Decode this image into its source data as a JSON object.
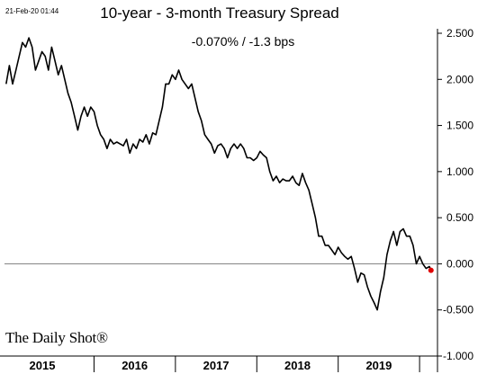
{
  "timestamp": "21-Feb-20 01:44",
  "brand": "The Daily Shot®",
  "chart_data": {
    "type": "line",
    "title": "10-year - 3-month Treasury Spread",
    "subtitle": "-0.070%  /  -1.3 bps",
    "xlabel": "",
    "ylabel": "",
    "ylim": [
      -1.0,
      2.5
    ],
    "yticks": [
      "2.500",
      "2.000",
      "1.500",
      "1.000",
      "0.500",
      "0.000",
      "-0.500",
      "-1.000"
    ],
    "ytick_values": [
      2.5,
      2.0,
      1.5,
      1.0,
      0.5,
      0.0,
      -0.5,
      -1.0
    ],
    "xlim": [
      2014.9,
      2020.22
    ],
    "year_labels": [
      "2015",
      "2016",
      "2017",
      "2018",
      "2019"
    ],
    "zero_line": true,
    "last_point_color": "#e00000",
    "line_color": "#000000",
    "series": [
      {
        "values": [
          [
            2014.92,
            1.95
          ],
          [
            2014.96,
            2.15
          ],
          [
            2015.0,
            1.95
          ],
          [
            2015.04,
            2.1
          ],
          [
            2015.08,
            2.25
          ],
          [
            2015.12,
            2.4
          ],
          [
            2015.16,
            2.35
          ],
          [
            2015.2,
            2.45
          ],
          [
            2015.24,
            2.35
          ],
          [
            2015.28,
            2.1
          ],
          [
            2015.32,
            2.2
          ],
          [
            2015.36,
            2.3
          ],
          [
            2015.4,
            2.25
          ],
          [
            2015.44,
            2.1
          ],
          [
            2015.48,
            2.35
          ],
          [
            2015.52,
            2.2
          ],
          [
            2015.56,
            2.05
          ],
          [
            2015.6,
            2.15
          ],
          [
            2015.64,
            2.0
          ],
          [
            2015.68,
            1.85
          ],
          [
            2015.72,
            1.75
          ],
          [
            2015.76,
            1.6
          ],
          [
            2015.8,
            1.45
          ],
          [
            2015.84,
            1.6
          ],
          [
            2015.88,
            1.7
          ],
          [
            2015.92,
            1.6
          ],
          [
            2015.96,
            1.7
          ],
          [
            2016.0,
            1.65
          ],
          [
            2016.04,
            1.5
          ],
          [
            2016.08,
            1.4
          ],
          [
            2016.12,
            1.35
          ],
          [
            2016.16,
            1.25
          ],
          [
            2016.2,
            1.35
          ],
          [
            2016.24,
            1.3
          ],
          [
            2016.28,
            1.32
          ],
          [
            2016.32,
            1.3
          ],
          [
            2016.36,
            1.28
          ],
          [
            2016.4,
            1.35
          ],
          [
            2016.44,
            1.2
          ],
          [
            2016.48,
            1.3
          ],
          [
            2016.52,
            1.25
          ],
          [
            2016.56,
            1.35
          ],
          [
            2016.6,
            1.32
          ],
          [
            2016.64,
            1.4
          ],
          [
            2016.68,
            1.3
          ],
          [
            2016.72,
            1.42
          ],
          [
            2016.76,
            1.4
          ],
          [
            2016.8,
            1.55
          ],
          [
            2016.84,
            1.7
          ],
          [
            2016.88,
            1.95
          ],
          [
            2016.92,
            1.95
          ],
          [
            2016.96,
            2.05
          ],
          [
            2017.0,
            2.0
          ],
          [
            2017.04,
            2.1
          ],
          [
            2017.08,
            2.0
          ],
          [
            2017.12,
            1.95
          ],
          [
            2017.16,
            1.9
          ],
          [
            2017.2,
            1.95
          ],
          [
            2017.24,
            1.8
          ],
          [
            2017.28,
            1.65
          ],
          [
            2017.32,
            1.55
          ],
          [
            2017.36,
            1.4
          ],
          [
            2017.4,
            1.35
          ],
          [
            2017.44,
            1.3
          ],
          [
            2017.48,
            1.2
          ],
          [
            2017.52,
            1.28
          ],
          [
            2017.56,
            1.3
          ],
          [
            2017.6,
            1.25
          ],
          [
            2017.64,
            1.15
          ],
          [
            2017.68,
            1.25
          ],
          [
            2017.72,
            1.3
          ],
          [
            2017.76,
            1.25
          ],
          [
            2017.8,
            1.3
          ],
          [
            2017.84,
            1.25
          ],
          [
            2017.88,
            1.15
          ],
          [
            2017.92,
            1.15
          ],
          [
            2017.96,
            1.12
          ],
          [
            2018.0,
            1.15
          ],
          [
            2018.04,
            1.22
          ],
          [
            2018.08,
            1.18
          ],
          [
            2018.12,
            1.15
          ],
          [
            2018.16,
            1.0
          ],
          [
            2018.2,
            0.9
          ],
          [
            2018.24,
            0.95
          ],
          [
            2018.28,
            0.88
          ],
          [
            2018.32,
            0.92
          ],
          [
            2018.36,
            0.9
          ],
          [
            2018.4,
            0.9
          ],
          [
            2018.44,
            0.95
          ],
          [
            2018.48,
            0.88
          ],
          [
            2018.52,
            0.85
          ],
          [
            2018.56,
            0.98
          ],
          [
            2018.6,
            0.88
          ],
          [
            2018.64,
            0.8
          ],
          [
            2018.68,
            0.65
          ],
          [
            2018.72,
            0.5
          ],
          [
            2018.76,
            0.3
          ],
          [
            2018.8,
            0.3
          ],
          [
            2018.84,
            0.2
          ],
          [
            2018.88,
            0.2
          ],
          [
            2018.92,
            0.15
          ],
          [
            2018.96,
            0.1
          ],
          [
            2019.0,
            0.18
          ],
          [
            2019.04,
            0.12
          ],
          [
            2019.08,
            0.08
          ],
          [
            2019.12,
            0.05
          ],
          [
            2019.16,
            0.08
          ],
          [
            2019.2,
            -0.05
          ],
          [
            2019.24,
            -0.2
          ],
          [
            2019.28,
            -0.1
          ],
          [
            2019.32,
            -0.12
          ],
          [
            2019.36,
            -0.25
          ],
          [
            2019.4,
            -0.35
          ],
          [
            2019.44,
            -0.42
          ],
          [
            2019.48,
            -0.5
          ],
          [
            2019.52,
            -0.3
          ],
          [
            2019.56,
            -0.15
          ],
          [
            2019.6,
            0.1
          ],
          [
            2019.64,
            0.25
          ],
          [
            2019.68,
            0.35
          ],
          [
            2019.72,
            0.2
          ],
          [
            2019.76,
            0.35
          ],
          [
            2019.8,
            0.38
          ],
          [
            2019.84,
            0.3
          ],
          [
            2019.88,
            0.3
          ],
          [
            2019.92,
            0.2
          ],
          [
            2019.96,
            0.0
          ],
          [
            2020.0,
            0.08
          ],
          [
            2020.04,
            0.0
          ],
          [
            2020.08,
            -0.05
          ],
          [
            2020.12,
            -0.03
          ],
          [
            2020.14,
            -0.07
          ]
        ]
      }
    ]
  }
}
